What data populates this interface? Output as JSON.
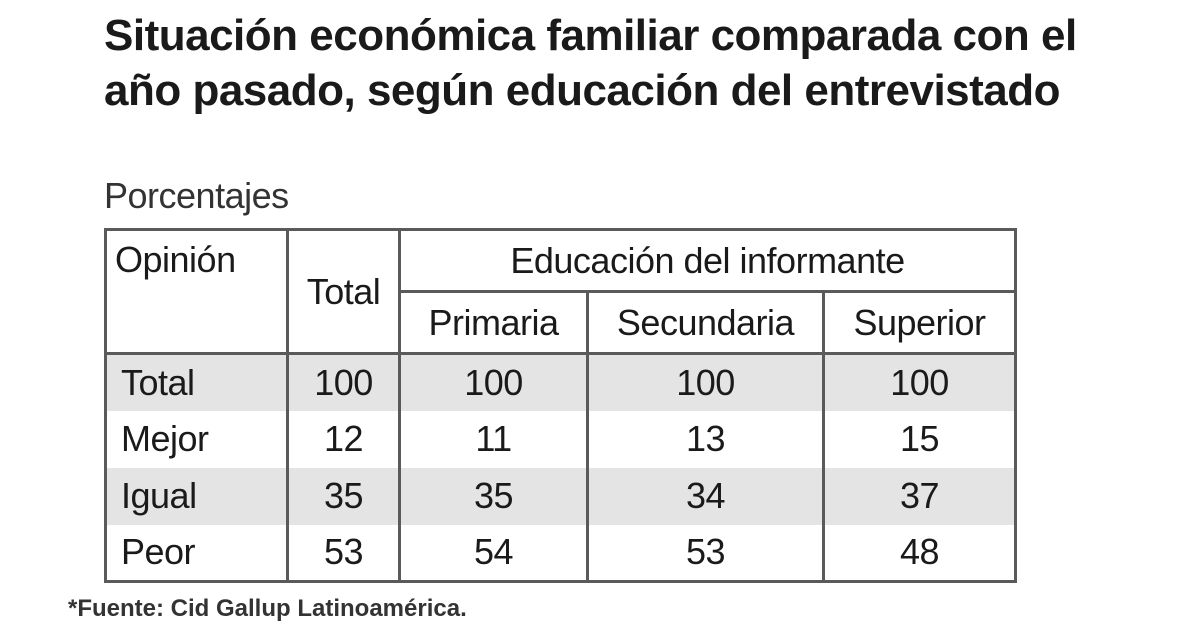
{
  "chart_data": {
    "type": "table",
    "title": "Situación económica familiar comparada con el año pasado, según educación del entrevistado",
    "subtitle": "Porcentajes",
    "header": {
      "opinion": "Opinión",
      "total": "Total",
      "group": "Educación del informante",
      "subcolumns": [
        "Primaria",
        "Secundaria",
        "Superior"
      ]
    },
    "rows": [
      {
        "label": "Total",
        "total": "100",
        "values": [
          "100",
          "100",
          "100"
        ]
      },
      {
        "label": "Mejor",
        "total": "12",
        "values": [
          "11",
          "13",
          "15"
        ]
      },
      {
        "label": "Igual",
        "total": "35",
        "values": [
          "35",
          "34",
          "37"
        ]
      },
      {
        "label": "Peor",
        "total": "53",
        "values": [
          "54",
          "53",
          "48"
        ]
      }
    ],
    "shaded_rows": [
      0,
      2
    ],
    "source": "*Fuente: Cid Gallup Latinoamérica."
  }
}
